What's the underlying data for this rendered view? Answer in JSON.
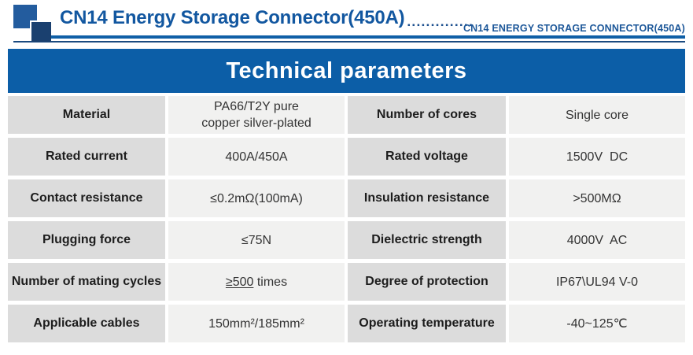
{
  "header": {
    "title": "CN14 Energy Storage Connector(450A)",
    "dots": "▪▪▪▪▪▪▪▪▪▪▪▪▪▪",
    "subtitle": "CN14 ENERGY STORAGE CONNECTOR(450A)"
  },
  "banner": {
    "title": "Technical parameters"
  },
  "table": {
    "rows": [
      {
        "left": {
          "label": "Material",
          "value": "PA66/T2Y pure\ncopper silver-plated"
        },
        "right": {
          "label": "Number of cores",
          "value": "Single core"
        }
      },
      {
        "left": {
          "label": "Rated current",
          "value": "400A/450A"
        },
        "right": {
          "label": "Rated voltage",
          "value": "1500V  DC"
        }
      },
      {
        "left": {
          "label": "Contact resistance",
          "value": "≤0.2mΩ(100mA)"
        },
        "right": {
          "label": "Insulation resistance",
          "value": ">500MΩ"
        }
      },
      {
        "left": {
          "label": "Plugging force",
          "value": "≤75N"
        },
        "right": {
          "label": "Dielectric strength",
          "value": "4000V  AC"
        }
      },
      {
        "left": {
          "label": "Number of mating cycles",
          "value_underlined": "≥500",
          "value_rest": " times"
        },
        "right": {
          "label": "Degree of protection",
          "value": "IP67\\UL94 V-0"
        }
      },
      {
        "left": {
          "label": "Applicable cables",
          "value": "150mm²/185mm²"
        },
        "right": {
          "label": "Operating temperature",
          "value": "-40~125℃"
        }
      }
    ]
  },
  "colors": {
    "primary_blue": "#0c5ea7",
    "navy": "#1a406f",
    "rule_blue": "#0f5fa6",
    "title_blue": "#1257a0",
    "label_bg": "#dcdcdc",
    "value_bg": "#f1f1f0"
  }
}
